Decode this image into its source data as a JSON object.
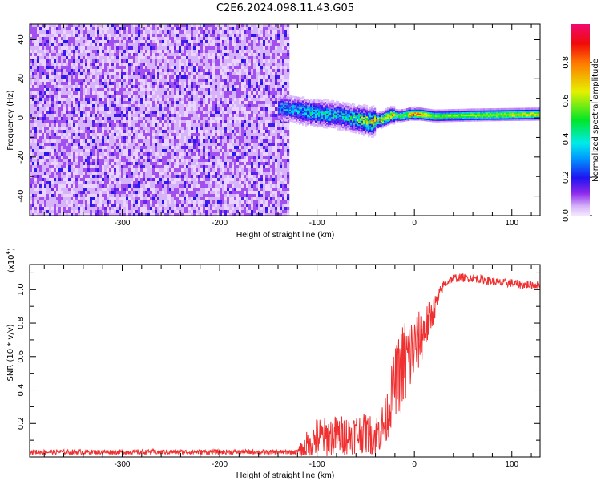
{
  "title": "C2E6.2024.098.11.43.G05",
  "colors": {
    "snr_line": "#f03030",
    "axis": "#000000"
  },
  "chart_data": [
    {
      "type": "heatmap",
      "xlabel": "Height of straight line (km)",
      "ylabel": "Frequency (Hz)",
      "xlim": [
        -395,
        129
      ],
      "ylim": [
        -50,
        48
      ],
      "x_ticks": [
        -300,
        -200,
        -100,
        0,
        100
      ],
      "x_tick_labels": [
        "-300",
        "-200",
        "-100",
        "0",
        "100"
      ],
      "y_ticks": [
        -40,
        -20,
        0,
        20,
        40
      ],
      "y_tick_labels": [
        "-40",
        "-20",
        "0",
        "20",
        "40"
      ],
      "noise_region_xmax": -130,
      "ridge": {
        "x": [
          -130,
          -110,
          -90,
          -70,
          -55,
          -45,
          -35,
          -25,
          -15,
          -5,
          5,
          20,
          60,
          129
        ],
        "freq": [
          5,
          3,
          2,
          0.5,
          -1,
          -2,
          -1,
          1.5,
          1,
          2,
          2,
          1,
          1.5,
          2
        ],
        "amplitude": [
          0.35,
          0.42,
          0.45,
          0.45,
          0.6,
          0.75,
          0.8,
          0.75,
          0.6,
          0.85,
          0.8,
          0.55,
          0.62,
          0.7
        ]
      },
      "colorbar": {
        "label": "Normalized spectral amplitude",
        "range": [
          0,
          1
        ],
        "ticks": [
          0.0,
          0.2,
          0.4,
          0.6,
          0.8
        ],
        "tick_labels": [
          "0.0",
          "0.2",
          "0.4",
          "0.6",
          "0.8"
        ]
      }
    },
    {
      "type": "line",
      "xlabel": "Height of straight line (km)",
      "ylabel": "SNR (10 * v/v)",
      "y_multiplier_label": "(x10",
      "y_multiplier_exp": "4",
      "y_multiplier_close": ")",
      "xlim": [
        -395,
        129
      ],
      "ylim": [
        0,
        1.15
      ],
      "x_ticks": [
        -300,
        -200,
        -100,
        0,
        100
      ],
      "x_tick_labels": [
        "-300",
        "-200",
        "-100",
        "0",
        "100"
      ],
      "y_ticks": [
        0.2,
        0.4,
        0.6,
        0.8,
        1.0
      ],
      "y_tick_labels": [
        "0.2",
        "0.4",
        "0.6",
        "0.8",
        "1.0"
      ],
      "series": [
        {
          "name": "SNR",
          "x": [
            -390,
            -380,
            -370,
            -360,
            -350,
            -340,
            -330,
            -320,
            -310,
            -300,
            -290,
            -280,
            -270,
            -260,
            -250,
            -240,
            -230,
            -220,
            -210,
            -200,
            -190,
            -180,
            -170,
            -160,
            -150,
            -140,
            -130,
            -120,
            -110,
            -100,
            -90,
            -80,
            -70,
            -60,
            -50,
            -40,
            -30,
            -20,
            -10,
            0,
            10,
            20,
            30,
            40,
            50,
            60,
            70,
            80,
            90,
            100,
            110,
            120,
            130
          ],
          "mean": [
            0.03,
            0.03,
            0.03,
            0.03,
            0.03,
            0.03,
            0.03,
            0.03,
            0.03,
            0.03,
            0.03,
            0.03,
            0.03,
            0.03,
            0.03,
            0.03,
            0.03,
            0.03,
            0.03,
            0.03,
            0.03,
            0.03,
            0.03,
            0.03,
            0.03,
            0.03,
            0.03,
            0.03,
            0.06,
            0.12,
            0.12,
            0.13,
            0.13,
            0.14,
            0.14,
            0.13,
            0.2,
            0.45,
            0.55,
            0.65,
            0.75,
            0.88,
            1.03,
            1.07,
            1.07,
            1.07,
            1.06,
            1.05,
            1.04,
            1.04,
            1.03,
            1.03,
            1.03
          ],
          "spread": [
            0.015,
            0.015,
            0.015,
            0.015,
            0.015,
            0.015,
            0.015,
            0.015,
            0.015,
            0.015,
            0.015,
            0.015,
            0.015,
            0.015,
            0.015,
            0.015,
            0.015,
            0.015,
            0.015,
            0.015,
            0.015,
            0.015,
            0.015,
            0.015,
            0.015,
            0.015,
            0.015,
            0.015,
            0.1,
            0.12,
            0.12,
            0.12,
            0.12,
            0.12,
            0.12,
            0.12,
            0.15,
            0.2,
            0.3,
            0.2,
            0.15,
            0.08,
            0.025,
            0.025,
            0.025,
            0.025,
            0.025,
            0.025,
            0.025,
            0.025,
            0.025,
            0.025,
            0.025
          ]
        }
      ]
    }
  ]
}
